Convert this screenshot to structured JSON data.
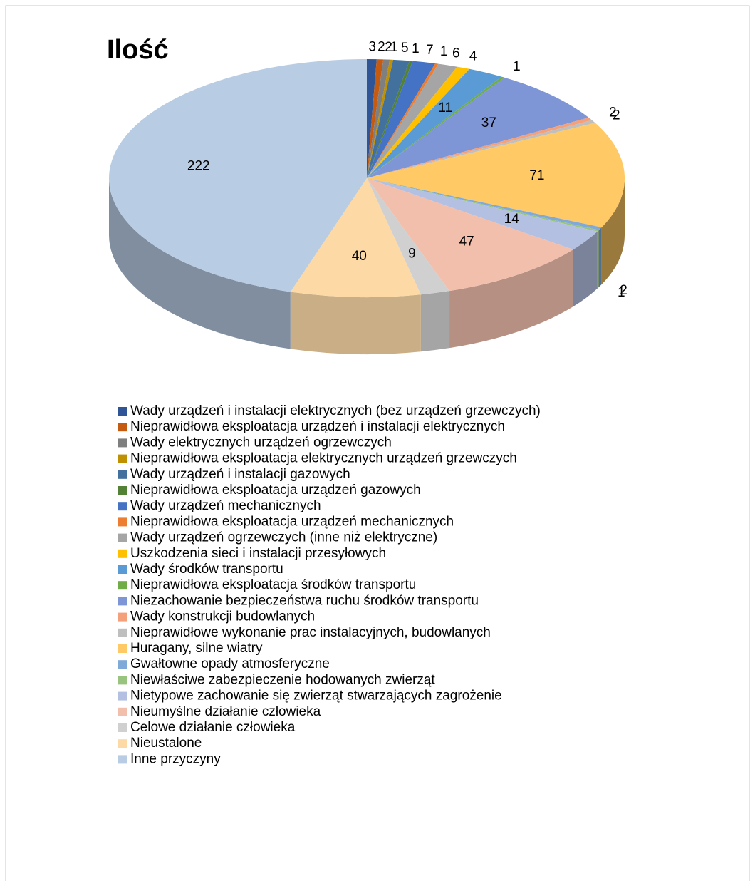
{
  "chart_data": {
    "type": "pie3d",
    "title": "Ilość",
    "categories": [
      "Wady urządzeń i instalacji elektrycznych (bez urządzeń grzewczych)",
      "Nieprawidłowa eksploatacja urządzeń i instalacji elektrycznych",
      "Wady elektrycznych urządzeń ogrzewczych",
      "Nieprawidłowa eksploatacja elektrycznych urządzeń grzewczych",
      "Wady urządzeń i instalacji gazowych",
      "Nieprawidłowa eksploatacja urządzeń gazowych",
      "Wady urządzeń mechanicznych",
      "Nieprawidłowa eksploatacja urządzeń mechanicznych",
      "Wady urządzeń ogrzewczych (inne niż elektryczne)",
      "Uszkodzenia sieci i instalacji przesyłowych",
      "Wady  środków transportu",
      "Nieprawidłowa eksploatacja środków transportu",
      "Niezachowanie bezpieczeństwa ruchu środków transportu",
      "Wady konstrukcji budowlanych",
      "Nieprawidłowe wykonanie prac instalacyjnych, budowlanych",
      "Huragany, silne wiatry",
      "Gwałtowne opady atmosferyczne",
      "Niewłaściwe zabezpieczenie hodowanych zwierząt",
      "Nietypowe zachowanie się zwierząt stwarzających zagrożenie",
      "Nieumyślne działanie człowieka",
      "Celowe działanie człowieka",
      "Nieustalone",
      "Inne przyczyny"
    ],
    "values": [
      3,
      2,
      2,
      1,
      5,
      1,
      7,
      1,
      6,
      4,
      11,
      1,
      37,
      2,
      2,
      71,
      2,
      1,
      14,
      47,
      9,
      40,
      222
    ],
    "colors": [
      "#2F5597",
      "#C55A11",
      "#7F7F7F",
      "#BF9000",
      "#41719C",
      "#538135",
      "#4472C4",
      "#ED7D31",
      "#A5A5A5",
      "#FFC000",
      "#5B9BD5",
      "#70AD47",
      "#7F96D6",
      "#F4A07A",
      "#BFBFBF",
      "#FFC966",
      "#7FA9D9",
      "#99C47F",
      "#B4C0E2",
      "#F2BFAD",
      "#D0D0D0",
      "#FDD9A6",
      "#B8CCE4"
    ],
    "legend": "bottom"
  }
}
